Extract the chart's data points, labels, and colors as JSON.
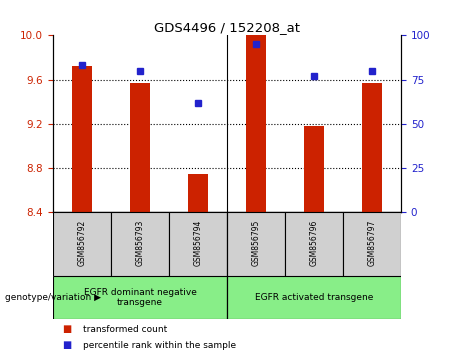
{
  "title": "GDS4496 / 152208_at",
  "samples": [
    "GSM856792",
    "GSM856793",
    "GSM856794",
    "GSM856795",
    "GSM856796",
    "GSM856797"
  ],
  "red_values": [
    9.72,
    9.57,
    8.75,
    10.0,
    9.18,
    9.57
  ],
  "blue_values": [
    83,
    80,
    62,
    95,
    77,
    80
  ],
  "ylim_left": [
    8.4,
    10.0
  ],
  "ylim_right": [
    0,
    100
  ],
  "yticks_left": [
    8.4,
    8.8,
    9.2,
    9.6,
    10.0
  ],
  "yticks_right": [
    0,
    25,
    50,
    75,
    100
  ],
  "grid_values": [
    8.8,
    9.2,
    9.6
  ],
  "bar_color": "#cc2200",
  "dot_color": "#2222cc",
  "bar_bottom": 8.4,
  "group1_label": "EGFR dominant negative\ntransgene",
  "group2_label": "EGFR activated transgene",
  "group_label": "genotype/variation",
  "legend_red": "transformed count",
  "legend_blue": "percentile rank within the sample",
  "tick_label_color_left": "#cc2200",
  "tick_label_color_right": "#2222cc",
  "plot_bg": "#ffffff",
  "label_bg": "#d0d0d0",
  "group_box_color": "#88ee88",
  "separator_idx": 3,
  "bar_width": 0.35
}
